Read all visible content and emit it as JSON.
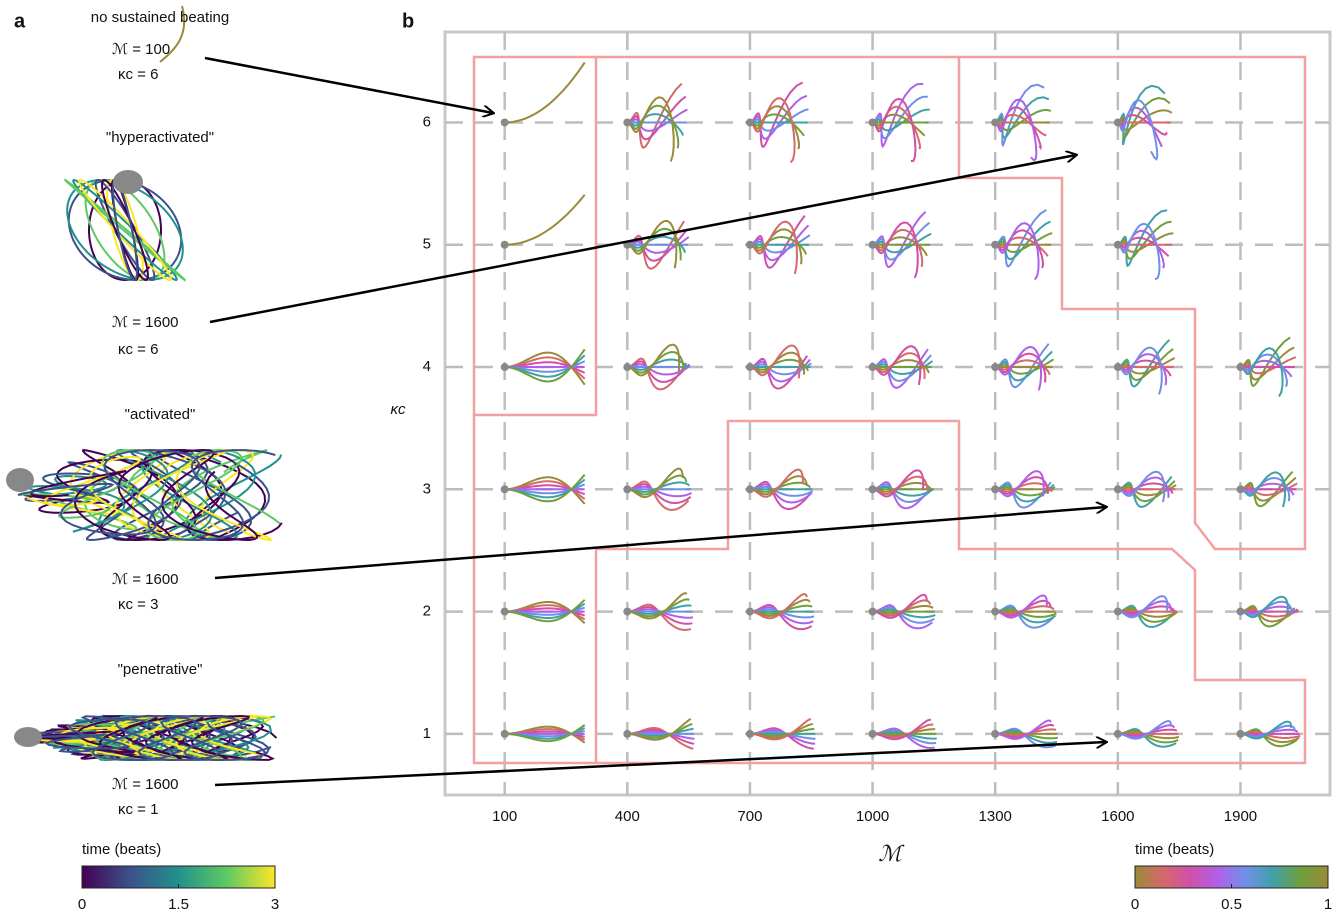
{
  "panel_a": {
    "label": "a",
    "items": [
      {
        "title": "no sustained beating",
        "m_label": "ℳ = 100",
        "k_label": "κc = 6"
      },
      {
        "title": "\"hyperactivated\"",
        "m_label": "ℳ = 1600",
        "k_label": "κc = 6"
      },
      {
        "title": "\"activated\"",
        "m_label": "ℳ = 1600",
        "k_label": "κc = 3"
      },
      {
        "title": "\"penetrative\"",
        "m_label": "ℳ = 1600",
        "k_label": "κc = 1"
      }
    ],
    "colorbar": {
      "title": "time (beats)",
      "lim": [
        0,
        3
      ],
      "ticks": [
        0,
        1.5,
        3
      ],
      "colors": [
        "#440154",
        "#3b528b",
        "#21918c",
        "#5ec962",
        "#fde725"
      ]
    }
  },
  "chart_data": {
    "type": "grid",
    "label": "b",
    "x_label": "ℳ",
    "y_label": "κc",
    "xlim": [
      -46,
      2119
    ],
    "ylim": [
      0.5,
      6.74
    ],
    "xticks": [
      100,
      400,
      700,
      1000,
      1300,
      1600,
      1900
    ],
    "yticks": [
      1,
      2,
      3,
      4,
      5,
      6
    ],
    "grid": true,
    "colorbar": {
      "title": "time (beats)",
      "lim": [
        0,
        1
      ],
      "ticks": [
        0,
        0.5,
        1
      ],
      "colors": [
        "#9a8a3a",
        "#d46a6a",
        "#d050a8",
        "#b060e8",
        "#7090e8",
        "#40a0a8",
        "#6ea03c",
        "#9a8a3a"
      ]
    }
  }
}
